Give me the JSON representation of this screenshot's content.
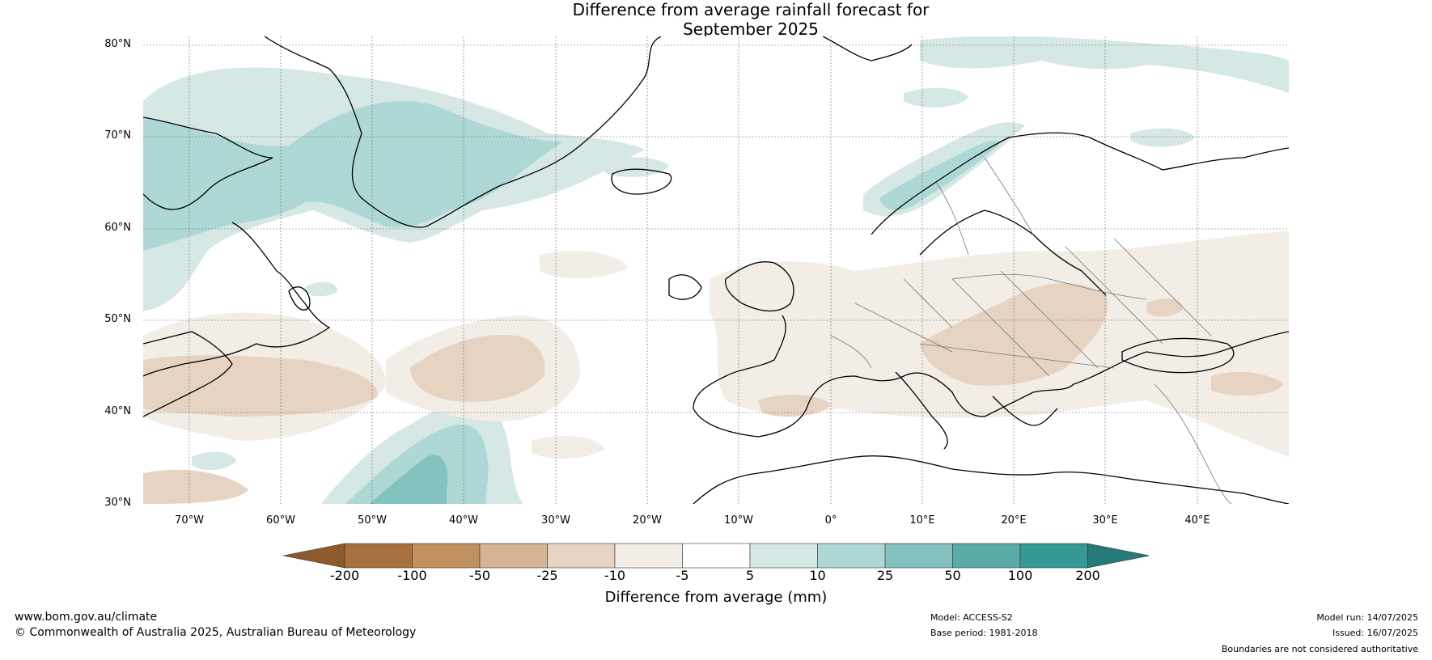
{
  "title": {
    "line1": "Difference from average rainfall forecast for",
    "line2": "September 2025"
  },
  "map": {
    "projection": "equirectangular",
    "lon_range": [
      -75,
      50
    ],
    "lat_range": [
      30,
      81
    ],
    "latitude_labels": [
      "80°N",
      "70°N",
      "60°N",
      "50°N",
      "40°N",
      "30°N"
    ],
    "longitude_labels": [
      "70°W",
      "60°W",
      "50°W",
      "40°W",
      "30°W",
      "20°W",
      "10°W",
      "0°",
      "10°E",
      "20°E",
      "30°E",
      "40°E"
    ],
    "gridlines": "dotted",
    "anomaly_regions": [
      {
        "area": "Greenland and Baffin Bay",
        "category": "10 to 25"
      },
      {
        "area": "Labrador Sea / Davis Strait",
        "category": "5 to 10"
      },
      {
        "area": "Svalbard / Barents Sea",
        "category": "5 to 10"
      },
      {
        "area": "Western Norway coast",
        "category": "10 to 25"
      },
      {
        "area": "Subtropical North Atlantic (35N, 40W)",
        "category": "25 to 50"
      },
      {
        "area": "Western Atlantic off US east coast",
        "category": "-25 to -10"
      },
      {
        "area": "Central Atlantic (45N, 40W)",
        "category": "-25 to -10"
      },
      {
        "area": "Central and Eastern Europe",
        "category": "-10 to -5"
      },
      {
        "area": "Balkans / Carpathians",
        "category": "-25 to -10"
      },
      {
        "area": "Black Sea / Caucasus",
        "category": "-25 to -10"
      },
      {
        "area": "Iberian Peninsula",
        "category": "-10 to -5"
      },
      {
        "area": "British Isles",
        "category": "-10 to -5"
      }
    ]
  },
  "colorbar": {
    "label": "Difference from average (mm)",
    "ticks": [
      "-200",
      "-100",
      "-50",
      "-25",
      "-10",
      "-5",
      "5",
      "10",
      "25",
      "50",
      "100",
      "200"
    ],
    "colors": [
      "#8c5a2b",
      "#a8703f",
      "#c1925f",
      "#d6b393",
      "#e7d3c2",
      "#f2ede6",
      "#ffffff",
      "#d5e8e6",
      "#add8d5",
      "#83c2bf",
      "#5aacab",
      "#349895",
      "#277a7a"
    ]
  },
  "footer": {
    "url": "www.bom.gov.au/climate",
    "copyright": "© Commonwealth of Australia 2025, Australian Bureau of Meteorology",
    "model": "Model: ACCESS-S2",
    "base_period": "Base period: 1981-2018",
    "model_run": "Model run: 14/07/2025",
    "issued": "Issued: 16/07/2025",
    "boundaries": "Boundaries are not considered authoritative"
  }
}
